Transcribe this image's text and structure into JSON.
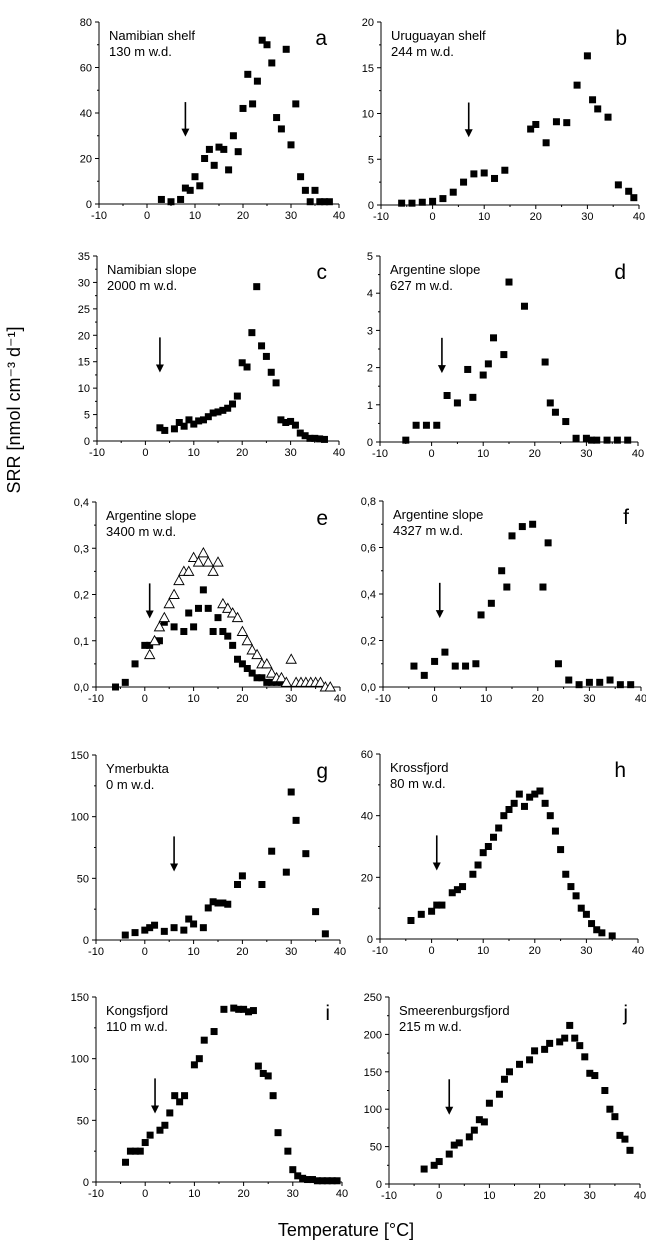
{
  "figure": {
    "ylabel": "SRR [nmol cm⁻³ d⁻¹]",
    "xlabel": "Temperature [°C]"
  },
  "chart_data": [
    {
      "type": "scatter",
      "id": "a",
      "letter": "a",
      "title": "Namibian shelf",
      "subtitle": "130 m w.d.",
      "xlim": [
        -10,
        40
      ],
      "ylim": [
        0,
        80
      ],
      "xticks": [
        "-10",
        "0",
        "10",
        "20",
        "30",
        "40"
      ],
      "yticks": [
        "0",
        "20",
        "40",
        "60",
        "80"
      ],
      "arrow_x": 8,
      "series": [
        {
          "marker": "square",
          "x": [
            3,
            5,
            7,
            8,
            9,
            10,
            11,
            12,
            13,
            14,
            15,
            16,
            17,
            18,
            19,
            20,
            21,
            22,
            23,
            24,
            25,
            26,
            27,
            28,
            29,
            30,
            31,
            32,
            33,
            34,
            35,
            36,
            37,
            38
          ],
          "y": [
            2,
            1,
            2,
            7,
            6,
            12,
            8,
            20,
            24,
            17,
            25,
            24,
            15,
            30,
            23,
            42,
            57,
            44,
            54,
            72,
            70,
            62,
            38,
            33,
            68,
            26,
            44,
            12,
            6,
            1,
            6,
            1,
            1,
            1
          ]
        }
      ]
    },
    {
      "type": "scatter",
      "id": "b",
      "letter": "b",
      "title": "Uruguayan shelf",
      "subtitle": "244 m w.d.",
      "xlim": [
        -10,
        40
      ],
      "ylim": [
        0,
        20
      ],
      "xticks": [
        "-10",
        "0",
        "10",
        "20",
        "30",
        "40"
      ],
      "yticks": [
        "0",
        "5",
        "10",
        "15",
        "20"
      ],
      "arrow_x": 7,
      "series": [
        {
          "marker": "square",
          "x": [
            -6,
            -4,
            -2,
            0,
            2,
            4,
            6,
            8,
            10,
            12,
            14,
            19,
            20,
            22,
            24,
            26,
            28,
            30,
            31,
            32,
            34,
            36,
            38,
            39
          ],
          "y": [
            0.2,
            0.2,
            0.3,
            0.4,
            0.7,
            1.4,
            2.5,
            3.4,
            3.5,
            2.9,
            3.8,
            8.3,
            8.8,
            6.8,
            9.1,
            9.0,
            13.1,
            16.3,
            11.5,
            10.5,
            9.6,
            2.2,
            1.5,
            0.8
          ]
        }
      ]
    },
    {
      "type": "scatter",
      "id": "c",
      "letter": "c",
      "title": "Namibian slope",
      "subtitle": "2000 m w.d.",
      "xlim": [
        -10,
        40
      ],
      "ylim": [
        0,
        35
      ],
      "xticks": [
        "-10",
        "0",
        "10",
        "20",
        "30",
        "40"
      ],
      "yticks": [
        "0",
        "5",
        "10",
        "15",
        "20",
        "25",
        "30",
        "35"
      ],
      "arrow_x": 3,
      "series": [
        {
          "marker": "square",
          "x": [
            3,
            4,
            6,
            7,
            8,
            9,
            10,
            11,
            12,
            13,
            14,
            15,
            16,
            17,
            18,
            19,
            20,
            21,
            22,
            23,
            24,
            25,
            26,
            27,
            28,
            29,
            30,
            31,
            32,
            33,
            34,
            35,
            36,
            37
          ],
          "y": [
            2.5,
            2,
            2.3,
            3.5,
            2.8,
            4,
            3.2,
            3.8,
            4,
            4.6,
            5.3,
            5.5,
            5.8,
            6.2,
            7,
            8.5,
            14.8,
            14,
            20.5,
            29.2,
            18,
            16,
            13,
            11,
            4,
            3.5,
            3.7,
            3,
            1.5,
            1,
            0.5,
            0.5,
            0.4,
            0.3
          ]
        }
      ]
    },
    {
      "type": "scatter",
      "id": "d",
      "letter": "d",
      "title": "Argentine slope",
      "subtitle": "627 m w.d.",
      "xlim": [
        -10,
        40
      ],
      "ylim": [
        0,
        5
      ],
      "xticks": [
        "-10",
        "0",
        "10",
        "20",
        "30",
        "40"
      ],
      "yticks": [
        "0",
        "1",
        "2",
        "3",
        "4",
        "5"
      ],
      "arrow_x": 2,
      "series": [
        {
          "marker": "square",
          "x": [
            -5,
            -3,
            -1,
            1,
            3,
            5,
            7,
            8,
            10,
            11,
            12,
            14,
            15,
            18,
            22,
            23,
            24,
            26,
            28,
            30,
            31,
            32,
            34,
            36,
            38
          ],
          "y": [
            0.05,
            0.45,
            0.45,
            0.45,
            1.25,
            1.05,
            1.95,
            1.2,
            1.8,
            2.1,
            2.8,
            2.35,
            4.3,
            3.65,
            2.15,
            1.05,
            0.8,
            0.55,
            0.1,
            0.1,
            0.05,
            0.05,
            0.05,
            0.05,
            0.05
          ]
        }
      ]
    },
    {
      "type": "scatter",
      "id": "e",
      "letter": "e",
      "title": "Argentine slope",
      "subtitle": "3400 m w.d.",
      "xlim": [
        -10,
        40
      ],
      "ylim": [
        0,
        0.4
      ],
      "xticks": [
        "-10",
        "0",
        "10",
        "20",
        "30",
        "40"
      ],
      "yticks": [
        "0,0",
        "0,1",
        "0,2",
        "0,3",
        "0,4"
      ],
      "arrow_x": 1,
      "series": [
        {
          "marker": "square",
          "x": [
            -6,
            -4,
            -2,
            0,
            1,
            3,
            4,
            6,
            8,
            9,
            10,
            11,
            12,
            13,
            14,
            15,
            16,
            17,
            18,
            19,
            20,
            21,
            22,
            23,
            24,
            25,
            26,
            27,
            28
          ],
          "y": [
            0.0,
            0.01,
            0.05,
            0.09,
            0.09,
            0.1,
            0.14,
            0.13,
            0.12,
            0.16,
            0.13,
            0.17,
            0.21,
            0.17,
            0.12,
            0.15,
            0.12,
            0.11,
            0.09,
            0.06,
            0.05,
            0.04,
            0.03,
            0.02,
            0.02,
            0.01,
            0.01,
            0.01,
            0.01
          ]
        },
        {
          "marker": "triangle",
          "x": [
            1,
            2,
            3,
            4,
            5,
            6,
            7,
            8,
            9,
            10,
            11,
            12,
            13,
            14,
            15,
            16,
            17,
            18,
            19,
            20,
            21,
            22,
            23,
            24,
            25,
            26,
            27,
            28,
            29,
            30,
            31,
            32,
            33,
            34,
            35,
            36,
            37,
            38
          ],
          "y": [
            0.07,
            0.1,
            0.13,
            0.15,
            0.18,
            0.2,
            0.23,
            0.25,
            0.25,
            0.28,
            0.27,
            0.29,
            0.27,
            0.25,
            0.27,
            0.18,
            0.17,
            0.16,
            0.15,
            0.12,
            0.1,
            0.08,
            0.07,
            0.05,
            0.05,
            0.03,
            0.02,
            0.02,
            0.01,
            0.06,
            0.01,
            0.01,
            0.01,
            0.01,
            0.01,
            0.01,
            0.0,
            0.0
          ]
        }
      ]
    },
    {
      "type": "scatter",
      "id": "f",
      "letter": "f",
      "title": "Argentine slope",
      "subtitle": "4327 m w.d.",
      "xlim": [
        -10,
        40
      ],
      "ylim": [
        0,
        0.8
      ],
      "xticks": [
        "-10",
        "0",
        "10",
        "20",
        "30",
        "40"
      ],
      "yticks": [
        "0,0",
        "0,2",
        "0,4",
        "0,6",
        "0,8"
      ],
      "arrow_x": 1,
      "series": [
        {
          "marker": "square",
          "x": [
            -4,
            -2,
            0,
            2,
            4,
            6,
            8,
            9,
            11,
            13,
            14,
            15,
            17,
            19,
            21,
            22,
            24,
            26,
            28,
            30,
            32,
            34,
            36,
            38
          ],
          "y": [
            0.09,
            0.05,
            0.11,
            0.15,
            0.09,
            0.09,
            0.1,
            0.31,
            0.36,
            0.5,
            0.43,
            0.65,
            0.69,
            0.7,
            0.43,
            0.62,
            0.1,
            0.03,
            0.01,
            0.02,
            0.02,
            0.03,
            0.01,
            0.01
          ]
        }
      ]
    },
    {
      "type": "scatter",
      "id": "g",
      "letter": "g",
      "title": "Ymerbukta",
      "subtitle": "0 m w.d.",
      "xlim": [
        -10,
        40
      ],
      "ylim": [
        0,
        150
      ],
      "xticks": [
        "-10",
        "0",
        "10",
        "20",
        "30",
        "40"
      ],
      "yticks": [
        "0",
        "50",
        "100",
        "150"
      ],
      "arrow_x": 6,
      "series": [
        {
          "marker": "square",
          "x": [
            -4,
            -2,
            0,
            1,
            2,
            4,
            6,
            8,
            9,
            10,
            12,
            13,
            14,
            15,
            16,
            17,
            19,
            20,
            24,
            26,
            29,
            30,
            31,
            33,
            35,
            37
          ],
          "y": [
            4,
            6,
            8,
            10,
            12,
            7,
            10,
            8,
            17,
            13,
            10,
            26,
            31,
            30,
            30,
            29,
            45,
            52,
            45,
            72,
            55,
            120,
            97,
            70,
            23,
            5
          ]
        }
      ]
    },
    {
      "type": "scatter",
      "id": "h",
      "letter": "h",
      "title": "Krossfjord",
      "subtitle": "80 m w.d.",
      "xlim": [
        -10,
        40
      ],
      "ylim": [
        0,
        60
      ],
      "xticks": [
        "-10",
        "0",
        "10",
        "20",
        "30",
        "40"
      ],
      "yticks": [
        "0",
        "20",
        "40",
        "60"
      ],
      "arrow_x": 1,
      "series": [
        {
          "marker": "square",
          "x": [
            -4,
            -2,
            0,
            1,
            2,
            4,
            5,
            6,
            8,
            9,
            10,
            11,
            12,
            13,
            14,
            15,
            16,
            17,
            18,
            19,
            20,
            21,
            22,
            23,
            24,
            25,
            26,
            27,
            28,
            29,
            30,
            31,
            32,
            33,
            35
          ],
          "y": [
            6,
            8,
            9,
            11,
            11,
            15,
            16,
            17,
            21,
            24,
            28,
            30,
            33,
            36,
            40,
            42,
            44,
            47,
            43,
            46,
            47,
            48,
            44,
            40,
            35,
            29,
            21,
            17,
            14,
            10,
            8,
            5,
            3,
            2,
            1
          ]
        }
      ]
    },
    {
      "type": "scatter",
      "id": "i",
      "letter": "i",
      "title": "Kongsfjord",
      "subtitle": "110 m w.d.",
      "xlim": [
        -10,
        40
      ],
      "ylim": [
        0,
        150
      ],
      "xticks": [
        "-10",
        "0",
        "10",
        "20",
        "30",
        "40"
      ],
      "yticks": [
        "0",
        "50",
        "100",
        "150"
      ],
      "arrow_x": 2,
      "series": [
        {
          "marker": "square",
          "x": [
            -4,
            -3,
            -2,
            -1,
            0,
            1,
            3,
            4,
            5,
            6,
            7,
            8,
            10,
            11,
            12,
            14,
            16,
            18,
            19,
            20,
            21,
            22,
            23,
            24,
            25,
            26,
            27,
            29,
            30,
            31,
            32,
            33,
            34,
            35,
            36,
            37,
            38,
            39
          ],
          "y": [
            16,
            25,
            25,
            25,
            32,
            38,
            42,
            46,
            56,
            70,
            65,
            70,
            95,
            100,
            115,
            122,
            140,
            141,
            140,
            140,
            138,
            139,
            94,
            88,
            86,
            70,
            40,
            25,
            10,
            5,
            3,
            2,
            2,
            1,
            1,
            1,
            1,
            1
          ]
        }
      ]
    },
    {
      "type": "scatter",
      "id": "j",
      "letter": "j",
      "title": "Smeerenburgsfjord",
      "subtitle": "215 m w.d.",
      "xlim": [
        -10,
        40
      ],
      "ylim": [
        0,
        250
      ],
      "xticks": [
        "-10",
        "0",
        "10",
        "20",
        "30",
        "40"
      ],
      "yticks": [
        "0",
        "50",
        "100",
        "150",
        "200",
        "250"
      ],
      "arrow_x": 2,
      "series": [
        {
          "marker": "square",
          "x": [
            -3,
            -1,
            0,
            2,
            3,
            4,
            6,
            7,
            8,
            9,
            10,
            12,
            13,
            14,
            16,
            18,
            19,
            21,
            22,
            24,
            25,
            26,
            27,
            28,
            29,
            30,
            31,
            33,
            34,
            35,
            36,
            37,
            38
          ],
          "y": [
            20,
            25,
            30,
            40,
            52,
            55,
            63,
            72,
            86,
            83,
            108,
            120,
            140,
            150,
            160,
            166,
            178,
            180,
            188,
            190,
            195,
            212,
            195,
            185,
            170,
            148,
            145,
            125,
            100,
            90,
            65,
            60,
            45
          ]
        }
      ]
    }
  ]
}
